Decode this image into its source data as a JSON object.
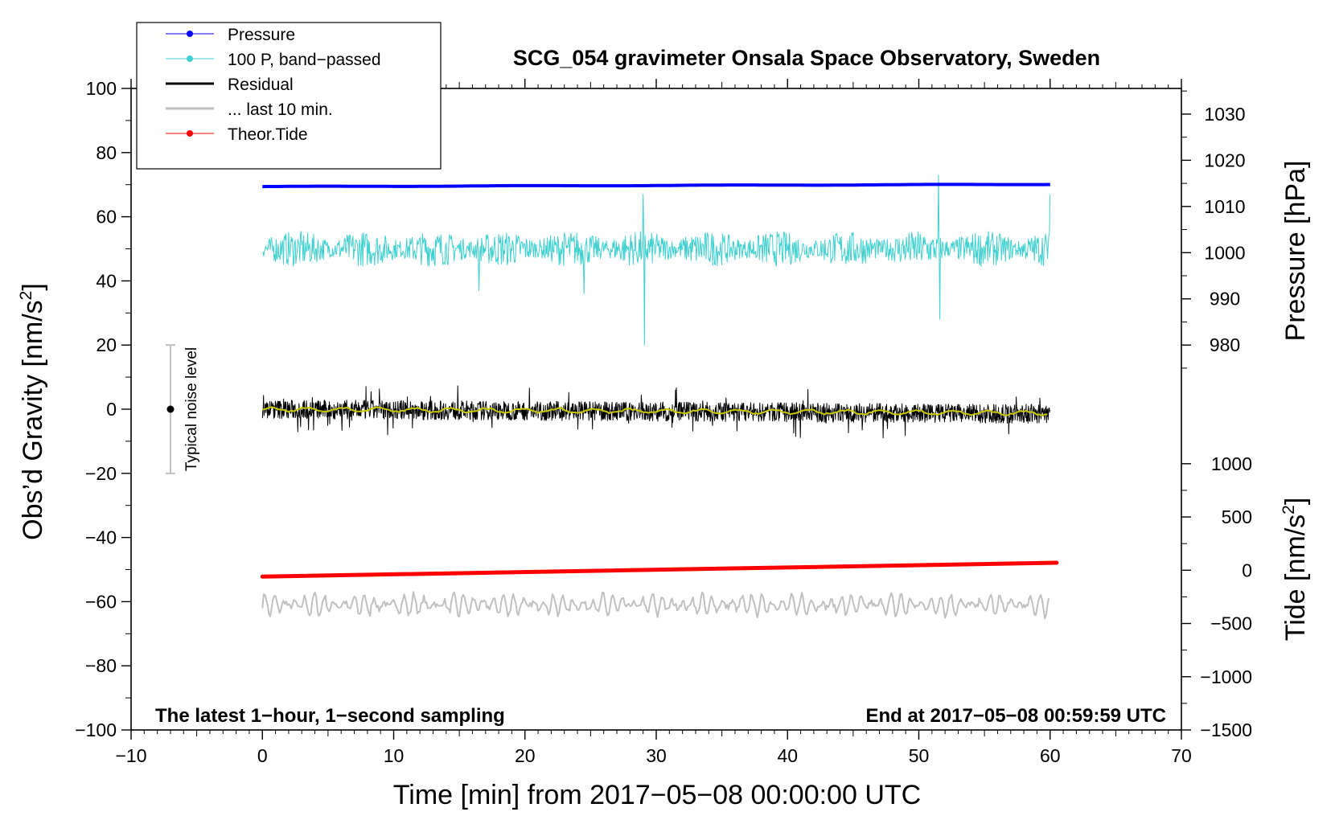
{
  "chart_data": {
    "type": "line",
    "title": "SCG_054 gravimeter Onsala Space Observatory, Sweden",
    "xlabel": "Time [min] from 2017−05−08 00:00:00 UTC",
    "ylabel_left": "Obs’d Gravity [nm/s",
    "ylabel_left_sup": "2",
    "ylabel_left_end": "]",
    "ylabel_right_pressure": "Pressure [hPa]",
    "ylabel_right_tide": "Tide [nm/s",
    "ylabel_right_tide_sup": "2",
    "ylabel_right_tide_end": "]",
    "xlim": [
      -10,
      70
    ],
    "ylim": [
      -100,
      100
    ],
    "x_ticks": [
      -10,
      0,
      10,
      20,
      30,
      40,
      50,
      60,
      70
    ],
    "x_tick_labels": [
      "−10",
      "0",
      "10",
      "20",
      "30",
      "40",
      "50",
      "60",
      "70"
    ],
    "y_ticks": [
      -100,
      -80,
      -60,
      -40,
      -20,
      0,
      20,
      40,
      60,
      80,
      100
    ],
    "y_tick_labels": [
      "−100",
      "−80",
      "−60",
      "−40",
      "−20",
      "0",
      "20",
      "40",
      "60",
      "80",
      "100"
    ],
    "pressure_axis": {
      "ticks": [
        980,
        990,
        1000,
        1010,
        1020,
        1030
      ],
      "tick_labels": [
        "980",
        "990",
        "1000",
        "1010",
        "1020",
        "1030"
      ],
      "gravity_at_980": 20,
      "gravity_at_1030": 92
    },
    "tide_axis": {
      "ticks": [
        -1500,
        -1000,
        -500,
        0,
        500,
        1000
      ],
      "tick_labels": [
        "−1500",
        "−1000",
        "−500",
        "0",
        "500",
        "1000"
      ],
      "gravity_at_minus1500": -100,
      "gravity_at_1000": -17
    },
    "series": [
      {
        "name": "Pressure",
        "color": "#0000ff",
        "unit": "hPa",
        "x_range": [
          0,
          60
        ],
        "start": 1014.3,
        "end": 1014.8,
        "width": 4
      },
      {
        "name": "100 P, band−passed",
        "color": "#40d0d0",
        "unit": "nm/s2",
        "x_range": [
          0,
          60
        ],
        "baseline": 50,
        "amplitude": 5,
        "spikes": [
          [
            16.5,
            -13
          ],
          [
            24.5,
            -14
          ],
          [
            29.0,
            17
          ],
          [
            29.1,
            -30
          ],
          [
            51.5,
            23
          ],
          [
            51.6,
            -22
          ],
          [
            60,
            17
          ]
        ],
        "width": 1
      },
      {
        "name": "Residual",
        "color": "#000000",
        "unit": "nm/s2",
        "x_range": [
          0,
          60
        ],
        "baseline": 0,
        "amplitude": 3,
        "drift_end": -1.5,
        "width": 1
      },
      {
        "name": "... last 10 min.",
        "color": "#c0c0c0",
        "unit": "nm/s2",
        "x_range": [
          0,
          60
        ],
        "baseline": -61,
        "amplitude": 3.5,
        "width": 2
      },
      {
        "name": "Theor.Tide",
        "color": "#ff0000",
        "unit": "nm/s2 (tide axis)",
        "x_range": [
          0,
          60.5
        ],
        "start": -60,
        "end": 70,
        "width": 5
      },
      {
        "name": "smoothed residual",
        "color": "#c8c800",
        "unit": "nm/s2",
        "x_range": [
          0,
          60
        ],
        "baseline": 0,
        "drift_end": -1.2,
        "width": 2
      }
    ],
    "noise_bar": {
      "x": -7,
      "center": 0,
      "half_range": 20,
      "label": "Typical noise level"
    },
    "annotation_left": "The latest 1−hour, 1−second sampling",
    "annotation_right": "End at 2017−05−08 00:59:59 UTC",
    "legend": {
      "placement": "top-left",
      "entries": [
        {
          "label": "Pressure",
          "color": "#0000ff",
          "marker": "dot"
        },
        {
          "label": "100 P, band−passed",
          "color": "#40d0d0",
          "marker": "dot"
        },
        {
          "label": "Residual",
          "color": "#000000",
          "marker": "none"
        },
        {
          "label": "... last 10 min.",
          "color": "#c0c0c0",
          "marker": "none"
        },
        {
          "label": "Theor.Tide",
          "color": "#ff0000",
          "marker": "dot"
        }
      ]
    }
  }
}
